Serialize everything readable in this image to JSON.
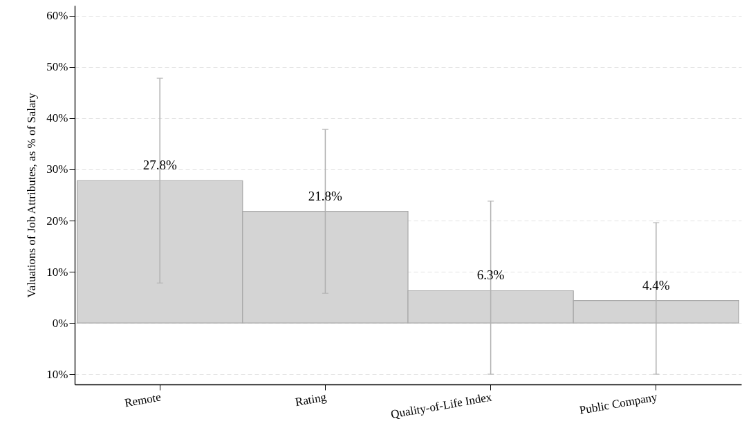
{
  "chart_data": {
    "type": "bar",
    "ylabel": "Valuations of Job Attributes, as % of Salary",
    "categories": [
      "Remote",
      "Rating",
      "Quality-of-Life Index",
      "Public Company"
    ],
    "values": [
      27.8,
      21.8,
      6.3,
      4.4
    ],
    "value_labels": [
      "27.8%",
      "21.8%",
      "6.3%",
      "4.4%"
    ],
    "errors": [
      [
        7.8,
        47.8
      ],
      [
        5.8,
        37.8
      ],
      [
        -10,
        23.8
      ],
      [
        -10,
        19.6
      ]
    ],
    "color": "#d4d4d4",
    "ylim": [
      -12,
      62
    ],
    "yticks": [
      {
        "value": -10,
        "label": "10%"
      },
      {
        "value": 0,
        "label": "0%"
      },
      {
        "value": 10,
        "label": "10%"
      },
      {
        "value": 20,
        "label": "20%"
      },
      {
        "value": 30,
        "label": "30%"
      },
      {
        "value": 40,
        "label": "40%"
      },
      {
        "value": 50,
        "label": "50%"
      },
      {
        "value": 60,
        "label": "60%"
      }
    ],
    "grid": "y"
  }
}
